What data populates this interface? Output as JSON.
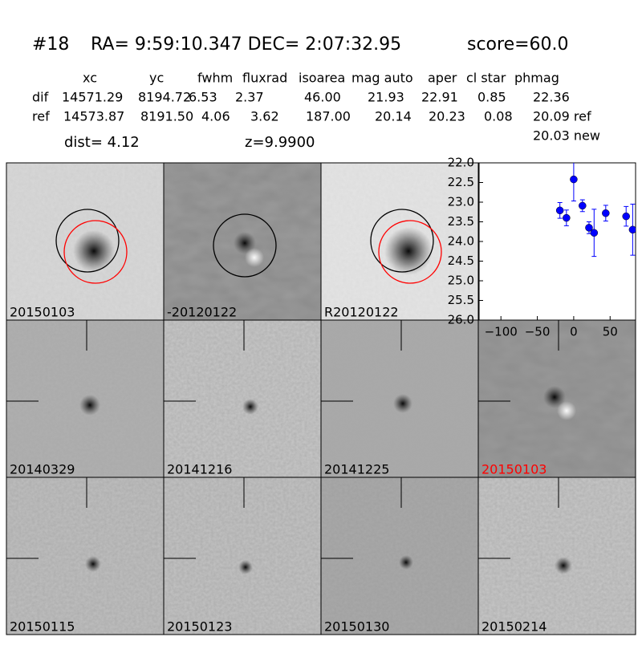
{
  "header": {
    "id": "#18",
    "coords": "RA= 9:59:10.347 DEC= 2:07:32.95",
    "score": "score=60.0"
  },
  "table": {
    "columns": [
      "xc",
      "yc",
      "fwhm",
      "fluxrad",
      "isoarea",
      "mag auto",
      "aper",
      "cl star",
      "phmag"
    ],
    "rows": [
      [
        "dif",
        "14571.29",
        "8194.72",
        "6.53",
        "2.37",
        "46.00",
        "21.93",
        "22.91",
        "0.85",
        "22.36"
      ],
      [
        "ref",
        "14573.87",
        "8191.50",
        "4.06",
        "3.62",
        "187.00",
        "20.14",
        "20.23",
        "0.08",
        "20.09 ref"
      ]
    ],
    "note": "20.03 new"
  },
  "info": {
    "dist": "dist=  4.12",
    "z": "z=9.9900"
  },
  "panels": [
    {
      "label": "20150103",
      "color": "#000000"
    },
    {
      "label": "-20120122",
      "color": "#000000"
    },
    {
      "label": "R20120122",
      "color": "#000000"
    },
    {
      "label": "20140329",
      "color": "#000000"
    },
    {
      "label": "20141216",
      "color": "#000000"
    },
    {
      "label": "20141225",
      "color": "#000000"
    },
    {
      "label": "20150103",
      "color": "#ff0000"
    },
    {
      "label": "20150115",
      "color": "#000000"
    },
    {
      "label": "20150123",
      "color": "#000000"
    },
    {
      "label": "20150130",
      "color": "#000000"
    },
    {
      "label": "20150214",
      "color": "#000000"
    }
  ],
  "chart_data": {
    "type": "scatter",
    "color": "#0000ff",
    "y_inverted": true,
    "x": [
      -19,
      -10,
      0,
      12,
      21,
      28,
      44,
      72,
      81
    ],
    "values": [
      23.21,
      23.4,
      22.42,
      23.09,
      23.65,
      23.78,
      23.28,
      23.36,
      23.7
    ],
    "errors": [
      0.2,
      0.2,
      0.55,
      0.15,
      0.15,
      0.6,
      0.2,
      0.25,
      0.65
    ],
    "xlim": [
      -130,
      85
    ],
    "xticks": [
      {
        "value": -100,
        "label": "−100"
      },
      {
        "value": -50,
        "label": "−50"
      },
      0,
      50
    ],
    "ylim": [
      22,
      26
    ],
    "yticks": [
      {
        "value": 22,
        "label": "22.0"
      },
      {
        "value": 22.5,
        "label": "22.5"
      },
      {
        "value": 23,
        "label": "23.0"
      },
      {
        "value": 23.5,
        "label": "23.5"
      },
      {
        "value": 24,
        "label": "24.0"
      },
      {
        "value": 24.5,
        "label": "24.5"
      },
      {
        "value": 25,
        "label": "25.0"
      },
      {
        "value": 25.5,
        "label": "25.5"
      },
      {
        "value": 26,
        "label": "26.0"
      }
    ]
  }
}
